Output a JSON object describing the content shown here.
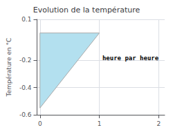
{
  "chart_data": {
    "type": "area",
    "title": "Evolution de la température",
    "ylabel": "Température en °C",
    "x": [
      0,
      0,
      1,
      0
    ],
    "values": [
      0,
      -0.55,
      0,
      0
    ],
    "color": "#b3e0ef",
    "xlim": [
      -0.05,
      2.1
    ],
    "xticks": [
      0,
      1,
      2
    ],
    "ylim": [
      -0.6,
      0.1
    ],
    "yticks": [
      0.1,
      -0.2,
      -0.4,
      -0.6
    ],
    "annotations": [
      {
        "text": "heure par heure",
        "x": 1.05,
        "y": -0.16
      }
    ],
    "grid": true
  }
}
